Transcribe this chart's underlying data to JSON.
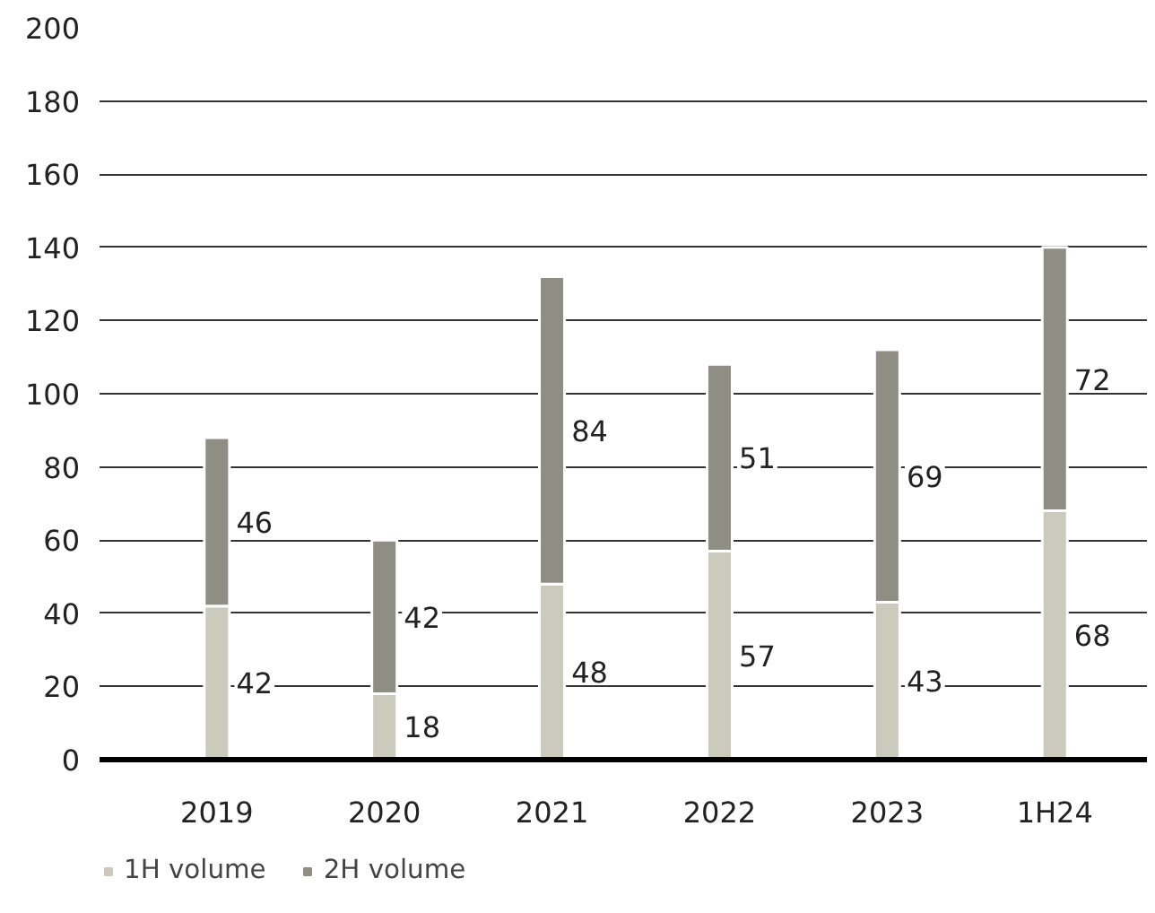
{
  "chart_data": {
    "type": "bar",
    "stacked": true,
    "categories": [
      "2019",
      "2020",
      "2021",
      "2022",
      "2023",
      "1H24"
    ],
    "series": [
      {
        "name": "1H volume",
        "color": "#cbcabd",
        "values": [
          42,
          18,
          48,
          57,
          43,
          68
        ]
      },
      {
        "name": "2H volume",
        "color": "#8e8e84",
        "values": [
          46,
          42,
          84,
          51,
          69,
          72
        ]
      }
    ],
    "ylim": [
      0,
      200
    ],
    "yticks": [
      0,
      20,
      40,
      60,
      80,
      100,
      120,
      140,
      160,
      180,
      200
    ],
    "grid": "y",
    "legend": "bottom left",
    "data_labels": true
  }
}
